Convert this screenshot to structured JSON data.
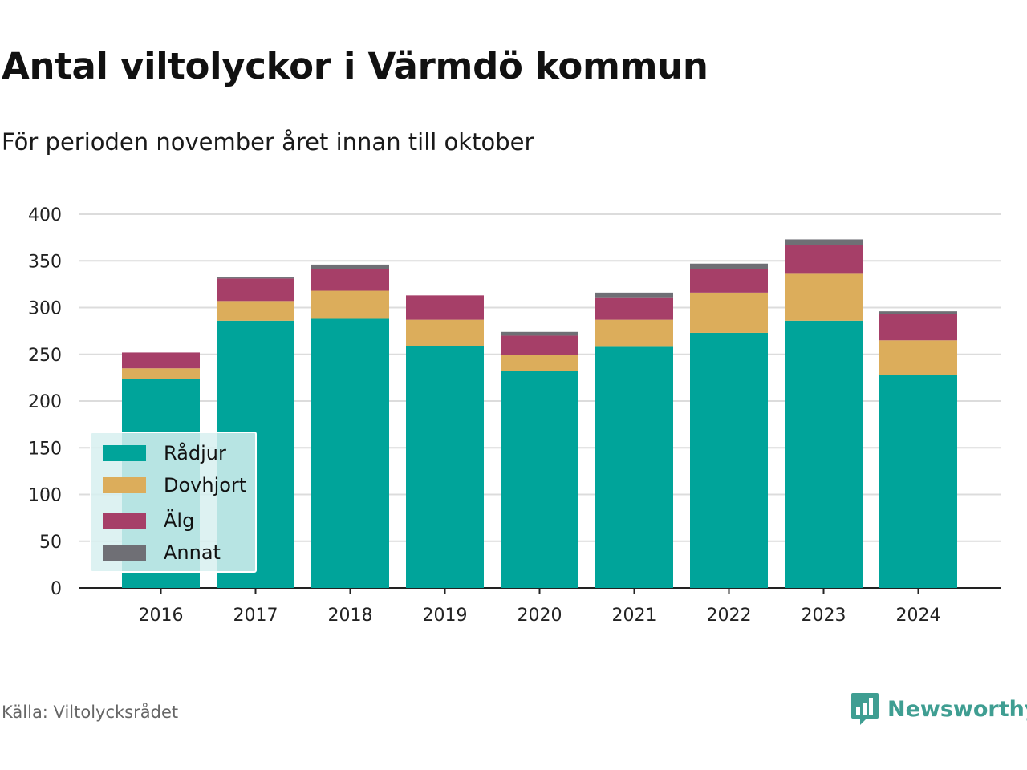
{
  "title": "Antal viltolyckor i Värmdö kommun",
  "subtitle": "För perioden november året innan till oktober",
  "source": "Källa: Viltolycksrådet",
  "brand": {
    "name": "Newsworthy",
    "icon": "newsworthy-logo-icon",
    "color": "#3f9e92"
  },
  "chart_data": {
    "type": "bar",
    "stacked": true,
    "categories": [
      "2016",
      "2017",
      "2018",
      "2019",
      "2020",
      "2021",
      "2022",
      "2023",
      "2024"
    ],
    "series": [
      {
        "name": "Rådjur",
        "color": "#00a49a",
        "values": [
          224,
          286,
          288,
          259,
          232,
          258,
          273,
          286,
          228
        ]
      },
      {
        "name": "Dovhjort",
        "color": "#dcad5b",
        "values": [
          11,
          21,
          30,
          28,
          17,
          29,
          43,
          51,
          37
        ]
      },
      {
        "name": "Älg",
        "color": "#a63f68",
        "values": [
          17,
          24,
          23,
          26,
          21,
          24,
          25,
          30,
          28
        ]
      },
      {
        "name": "Annat",
        "color": "#6f6f75",
        "values": [
          0,
          2,
          5,
          0,
          4,
          5,
          6,
          6,
          3
        ]
      }
    ],
    "ylim": [
      0,
      400
    ],
    "yticks": [
      0,
      50,
      100,
      150,
      200,
      250,
      300,
      350,
      400
    ],
    "grid": true,
    "legend": "bottom-left"
  }
}
